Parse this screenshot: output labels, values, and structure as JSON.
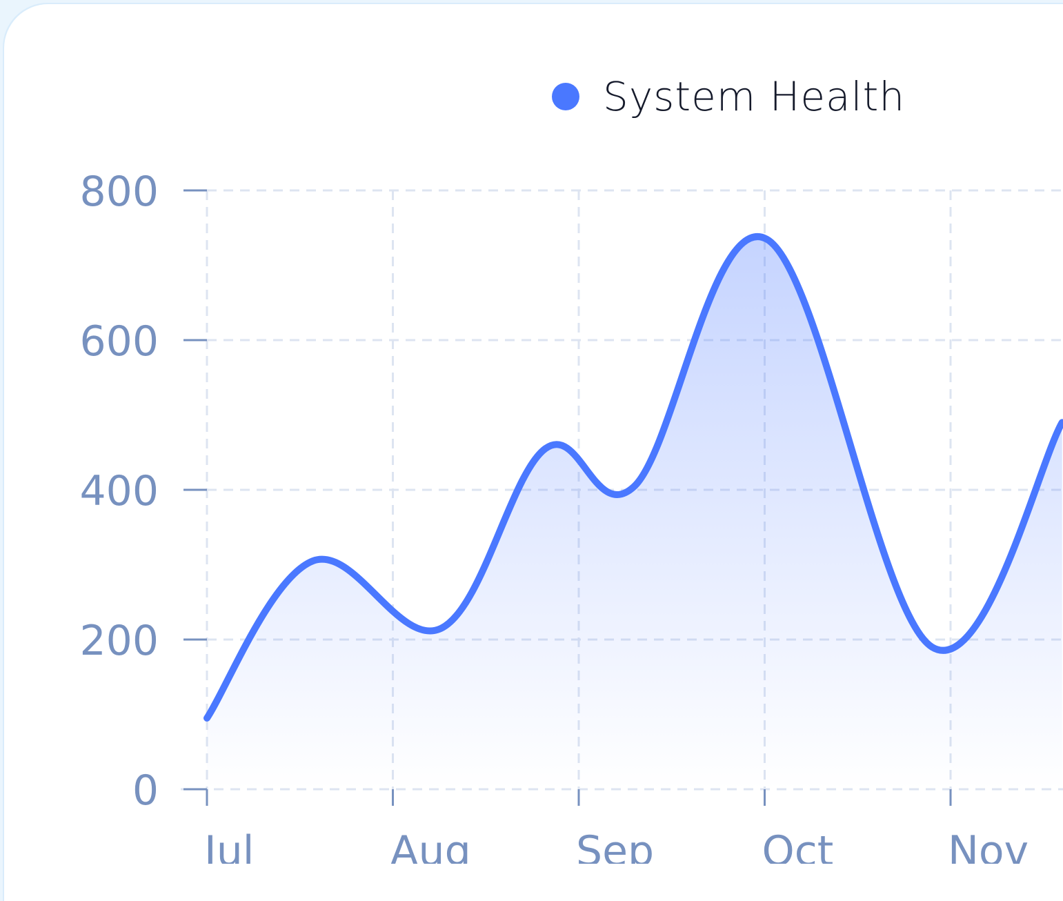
{
  "legend": {
    "label": "System Health",
    "color": "#4a78ff"
  },
  "chart_data": {
    "type": "area",
    "categories": [
      "Jul",
      "Aug",
      "Sep",
      "Oct",
      "Nov"
    ],
    "ylim": [
      0,
      800
    ],
    "yticks": [
      "0",
      "200",
      "400",
      "600",
      "800"
    ],
    "grid": true,
    "legend_position": "top-center",
    "series": [
      {
        "name": "System Health",
        "color": "#4a78ff",
        "points": [
          {
            "x": 0.0,
            "y": 95
          },
          {
            "x": 0.57,
            "y": 305
          },
          {
            "x": 1.26,
            "y": 215
          },
          {
            "x": 1.82,
            "y": 455
          },
          {
            "x": 2.3,
            "y": 405
          },
          {
            "x": 3.01,
            "y": 735
          },
          {
            "x": 3.9,
            "y": 190
          },
          {
            "x": 4.6,
            "y": 490
          }
        ]
      }
    ]
  }
}
